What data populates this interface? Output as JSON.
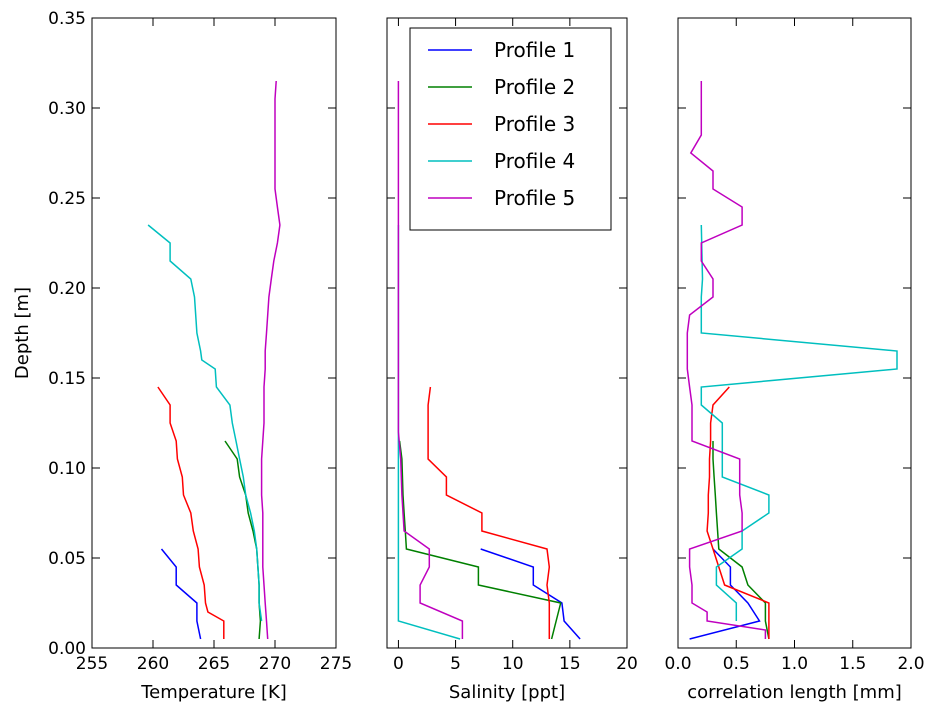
{
  "figure": {
    "ylabel": "Depth [m]"
  },
  "chart_data": [
    {
      "type": "line",
      "xlabel": "Temperature [K]",
      "ylabel": "Depth [m]",
      "xlim": [
        255,
        275
      ],
      "ylim": [
        0,
        0.35
      ],
      "x_ticks": [
        255,
        260,
        265,
        270,
        275
      ],
      "x_tick_labels": [
        "255",
        "260",
        "265",
        "270",
        "275"
      ],
      "y_ticks": [
        0,
        0.05,
        0.1,
        0.15,
        0.2,
        0.25,
        0.3,
        0.35
      ],
      "y_tick_labels": [
        "0.00",
        "0.05",
        "0.10",
        "0.15",
        "0.20",
        "0.25",
        "0.30",
        "0.35"
      ],
      "grid": false,
      "series": [
        {
          "name": "Profile 1",
          "color": "#0000ff",
          "x": [
            260.7,
            261.9,
            261.9,
            263.6,
            263.6,
            263.9
          ],
          "y": [
            0.055,
            0.045,
            0.035,
            0.025,
            0.015,
            0.005
          ]
        },
        {
          "name": "Profile 2",
          "color": "#008000",
          "x": [
            265.9,
            266.9,
            267.1,
            267.6,
            267.8,
            268.2,
            268.5,
            268.6,
            268.7,
            268.7,
            268.8,
            268.7
          ],
          "y": [
            0.115,
            0.105,
            0.095,
            0.085,
            0.075,
            0.065,
            0.055,
            0.045,
            0.035,
            0.025,
            0.015,
            0.005
          ]
        },
        {
          "name": "Profile 3",
          "color": "#ff0000",
          "x": [
            260.4,
            261.4,
            261.4,
            261.9,
            262.0,
            262.4,
            262.5,
            263.1,
            263.3,
            263.7,
            263.8,
            264.2,
            264.3,
            264.5,
            265.8,
            265.8
          ],
          "y": [
            0.145,
            0.135,
            0.125,
            0.115,
            0.105,
            0.095,
            0.085,
            0.075,
            0.065,
            0.055,
            0.045,
            0.035,
            0.025,
            0.02,
            0.015,
            0.005
          ]
        },
        {
          "name": "Profile 4",
          "color": "#00bfbf",
          "x": [
            259.6,
            261.4,
            261.4,
            263.1,
            263.4,
            263.5,
            263.6,
            263.9,
            264.0,
            265.1,
            265.2,
            266.3,
            266.5,
            266.8,
            267.1,
            267.4,
            267.6,
            268.0,
            268.3,
            268.5,
            268.6,
            268.7,
            268.7,
            268.9
          ],
          "y": [
            0.235,
            0.225,
            0.215,
            0.205,
            0.195,
            0.185,
            0.175,
            0.165,
            0.16,
            0.155,
            0.145,
            0.135,
            0.125,
            0.115,
            0.105,
            0.095,
            0.085,
            0.075,
            0.065,
            0.055,
            0.045,
            0.035,
            0.025,
            0.015
          ]
        },
        {
          "name": "Profile 5",
          "color": "#bf00bf",
          "x": [
            270.1,
            270.0,
            270.0,
            270.0,
            270.0,
            270.0,
            270.0,
            270.2,
            270.4,
            270.2,
            269.9,
            269.7,
            269.5,
            269.4,
            269.3,
            269.2,
            269.2,
            269.1,
            269.1,
            269.1,
            269.0,
            268.9,
            268.9,
            268.9,
            269.0,
            269.0,
            269.0,
            269.0,
            269.1,
            269.2,
            269.3,
            269.4
          ],
          "y": [
            0.315,
            0.305,
            0.295,
            0.285,
            0.275,
            0.265,
            0.255,
            0.245,
            0.235,
            0.225,
            0.215,
            0.205,
            0.195,
            0.185,
            0.175,
            0.165,
            0.155,
            0.145,
            0.135,
            0.125,
            0.115,
            0.105,
            0.095,
            0.085,
            0.075,
            0.065,
            0.055,
            0.045,
            0.035,
            0.025,
            0.015,
            0.005
          ]
        }
      ]
    },
    {
      "type": "line",
      "xlabel": "Salinity [ppt]",
      "xlim": [
        -1,
        20
      ],
      "ylim": [
        0,
        0.35
      ],
      "x_ticks": [
        0,
        5,
        10,
        15,
        20
      ],
      "x_tick_labels": [
        "0",
        "5",
        "10",
        "15",
        "20"
      ],
      "y_ticks": [
        0,
        0.05,
        0.1,
        0.15,
        0.2,
        0.25,
        0.3,
        0.35
      ],
      "grid": false,
      "legend": {
        "position": "upper-right",
        "entries": [
          "Profile 1",
          "Profile 2",
          "Profile 3",
          "Profile 4",
          "Profile 5"
        ]
      },
      "series": [
        {
          "name": "Profile 1",
          "color": "#0000ff",
          "x": [
            7.2,
            11.8,
            11.8,
            14.3,
            14.5,
            15.9
          ],
          "y": [
            0.055,
            0.045,
            0.035,
            0.025,
            0.015,
            0.005
          ]
        },
        {
          "name": "Profile 2",
          "color": "#008000",
          "x": [
            0.1,
            0.3,
            0.4,
            0.5,
            0.6,
            0.7,
            7.0,
            7.0,
            14.2,
            13.4
          ],
          "y": [
            0.115,
            0.105,
            0.085,
            0.075,
            0.065,
            0.055,
            0.045,
            0.035,
            0.025,
            0.005
          ]
        },
        {
          "name": "Profile 3",
          "color": "#ff0000",
          "x": [
            2.8,
            2.6,
            2.6,
            2.6,
            4.2,
            4.2,
            7.3,
            7.3,
            13.0,
            13.2,
            13.0,
            13.2,
            13.2
          ],
          "y": [
            0.145,
            0.135,
            0.125,
            0.105,
            0.095,
            0.085,
            0.075,
            0.065,
            0.055,
            0.045,
            0.035,
            0.025,
            0.005
          ]
        },
        {
          "name": "Profile 4",
          "color": "#00bfbf",
          "x": [
            0.0,
            0.0,
            0.0,
            0.0,
            0.0,
            5.4
          ],
          "y": [
            0.235,
            0.15,
            0.07,
            0.04,
            0.015,
            0.005
          ]
        },
        {
          "name": "Profile 5",
          "color": "#bf00bf",
          "x": [
            0.0,
            0.0,
            0.0,
            0.0,
            0.2,
            0.3,
            0.4,
            0.5,
            2.7,
            2.7,
            1.9,
            1.9,
            5.6,
            5.6
          ],
          "y": [
            0.315,
            0.25,
            0.15,
            0.12,
            0.105,
            0.085,
            0.075,
            0.065,
            0.055,
            0.045,
            0.035,
            0.025,
            0.015,
            0.005
          ]
        }
      ]
    },
    {
      "type": "line",
      "xlabel": "correlation length [mm]",
      "xlim": [
        0.0,
        2.0
      ],
      "ylim": [
        0,
        0.35
      ],
      "x_ticks": [
        0.0,
        0.5,
        1.0,
        1.5,
        2.0
      ],
      "x_tick_labels": [
        "0.0",
        "0.5",
        "1.0",
        "1.5",
        "2.0"
      ],
      "y_ticks": [
        0,
        0.05,
        0.1,
        0.15,
        0.2,
        0.25,
        0.3,
        0.35
      ],
      "grid": false,
      "series": [
        {
          "name": "Profile 1",
          "color": "#0000ff",
          "x": [
            0.3,
            0.45,
            0.45,
            0.6,
            0.7,
            0.1
          ],
          "y": [
            0.055,
            0.045,
            0.035,
            0.025,
            0.015,
            0.005
          ]
        },
        {
          "name": "Profile 2",
          "color": "#008000",
          "x": [
            0.3,
            0.3,
            0.31,
            0.32,
            0.33,
            0.34,
            0.35,
            0.55,
            0.6,
            0.75,
            0.75,
            0.78
          ],
          "y": [
            0.115,
            0.105,
            0.095,
            0.085,
            0.075,
            0.065,
            0.055,
            0.045,
            0.035,
            0.025,
            0.015,
            0.005
          ]
        },
        {
          "name": "Profile 3",
          "color": "#ff0000",
          "x": [
            0.44,
            0.3,
            0.28,
            0.28,
            0.27,
            0.27,
            0.26,
            0.26,
            0.25,
            0.3,
            0.35,
            0.4,
            0.78,
            0.78
          ],
          "y": [
            0.145,
            0.135,
            0.125,
            0.115,
            0.105,
            0.095,
            0.085,
            0.075,
            0.065,
            0.055,
            0.045,
            0.035,
            0.025,
            0.005
          ]
        },
        {
          "name": "Profile 4",
          "color": "#00bfbf",
          "x": [
            0.2,
            0.21,
            0.2,
            0.2,
            1.88,
            1.88,
            0.2,
            0.2,
            0.38,
            0.38,
            0.78,
            0.78,
            0.55,
            0.55,
            0.33,
            0.33,
            0.5,
            0.5
          ],
          "y": [
            0.235,
            0.205,
            0.195,
            0.175,
            0.165,
            0.155,
            0.145,
            0.135,
            0.125,
            0.095,
            0.085,
            0.075,
            0.065,
            0.055,
            0.045,
            0.035,
            0.025,
            0.015
          ]
        },
        {
          "name": "Profile 5",
          "color": "#bf00bf",
          "x": [
            0.2,
            0.2,
            0.11,
            0.3,
            0.3,
            0.55,
            0.55,
            0.2,
            0.2,
            0.3,
            0.3,
            0.1,
            0.08,
            0.08,
            0.1,
            0.12,
            0.12,
            0.53,
            0.53,
            0.53,
            0.55,
            0.55,
            0.1,
            0.1,
            0.12,
            0.12,
            0.25,
            0.25,
            0.75,
            0.75
          ],
          "y": [
            0.315,
            0.285,
            0.275,
            0.265,
            0.255,
            0.245,
            0.235,
            0.225,
            0.215,
            0.205,
            0.195,
            0.185,
            0.175,
            0.155,
            0.145,
            0.135,
            0.115,
            0.105,
            0.095,
            0.085,
            0.075,
            0.065,
            0.055,
            0.045,
            0.035,
            0.025,
            0.02,
            0.015,
            0.01,
            0.005
          ]
        }
      ]
    }
  ]
}
